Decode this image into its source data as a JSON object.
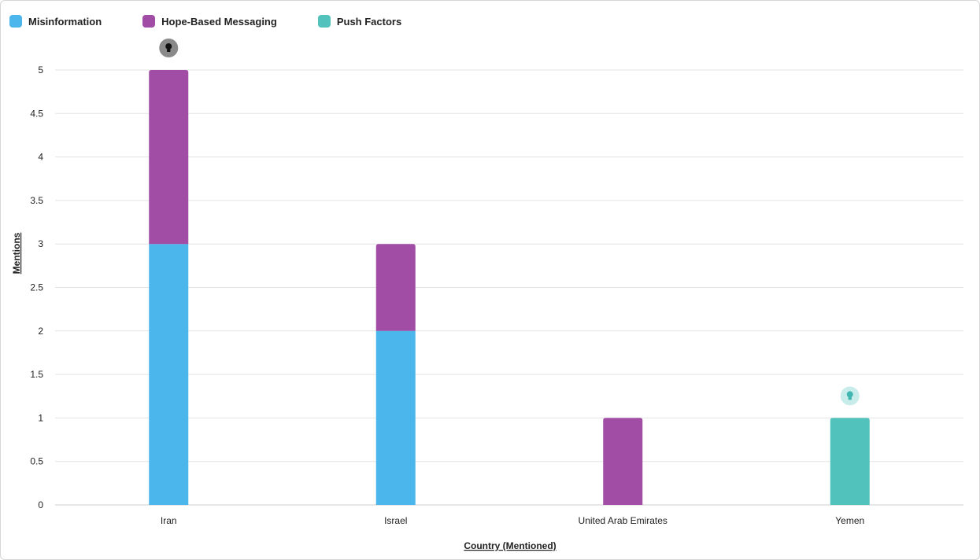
{
  "chart_data": {
    "type": "bar",
    "stacked": true,
    "categories": [
      "Iran",
      "Israel",
      "United Arab Emirates",
      "Yemen"
    ],
    "series": [
      {
        "name": "Misinformation",
        "color": "#4bb6ec",
        "values": [
          3,
          2,
          0,
          0
        ]
      },
      {
        "name": "Hope-Based Messaging",
        "color": "#a14ca5",
        "values": [
          2,
          1,
          1,
          0
        ]
      },
      {
        "name": "Push Factors",
        "color": "#52c2bc",
        "values": [
          0,
          0,
          0,
          1
        ]
      }
    ],
    "xlabel": "Country (Mentioned)",
    "ylabel": "Mentions",
    "ylim": [
      0,
      5
    ],
    "yticks": [
      "0",
      "0.5",
      "1",
      "1.5",
      "2",
      "2.5",
      "3",
      "3.5",
      "4",
      "4.5",
      "5"
    ],
    "grid": true,
    "legend_position": "top-left",
    "insight_markers": [
      {
        "category": "Iran",
        "icon": "lightbulb-icon",
        "style": "dark"
      },
      {
        "category": "Yemen",
        "icon": "lightbulb-icon",
        "style": "light"
      }
    ]
  }
}
